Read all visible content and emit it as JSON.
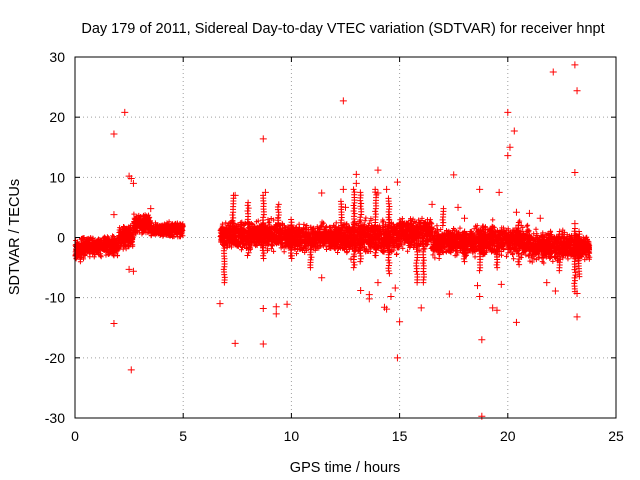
{
  "chart_data": {
    "type": "scatter",
    "title": "Day 179 of 2011, Sidereal Day-to-day VTEC variation (SDTVAR) for receiver hnpt",
    "xlabel": "GPS time / hours",
    "ylabel": "SDTVAR / TECUs",
    "xlim": [
      0,
      25
    ],
    "ylim": [
      -30,
      30
    ],
    "xticks": [
      0,
      5,
      10,
      15,
      20,
      25
    ],
    "yticks": [
      -30,
      -20,
      -10,
      0,
      10,
      20,
      30
    ],
    "grid": true,
    "marker": "+",
    "color": "#ff0000",
    "bands": [
      {
        "x0": 0.0,
        "x1": 0.5,
        "center": -2.0,
        "spread": 1.5
      },
      {
        "x0": 0.5,
        "x1": 2.0,
        "center": -1.5,
        "spread": 1.3
      },
      {
        "x0": 2.0,
        "x1": 2.7,
        "center": 0.0,
        "spread": 1.5
      },
      {
        "x0": 2.7,
        "x1": 3.5,
        "center": 2.3,
        "spread": 1.2
      },
      {
        "x0": 3.5,
        "x1": 5.0,
        "center": 1.3,
        "spread": 0.9
      },
      {
        "x0": 6.7,
        "x1": 9.5,
        "center": 0.5,
        "spread": 1.8
      },
      {
        "x0": 9.5,
        "x1": 12.5,
        "center": 0.0,
        "spread": 1.8
      },
      {
        "x0": 12.5,
        "x1": 15.0,
        "center": 0.0,
        "spread": 2.2
      },
      {
        "x0": 15.0,
        "x1": 16.5,
        "center": 0.8,
        "spread": 2.0
      },
      {
        "x0": 16.5,
        "x1": 18.5,
        "center": -0.8,
        "spread": 1.8
      },
      {
        "x0": 18.5,
        "x1": 21.0,
        "center": -0.5,
        "spread": 2.0
      },
      {
        "x0": 21.0,
        "x1": 23.8,
        "center": -1.5,
        "spread": 1.8
      }
    ],
    "outliers": [
      [
        1.8,
        17.2
      ],
      [
        2.3,
        20.8
      ],
      [
        1.8,
        -14.3
      ],
      [
        2.6,
        -22.0
      ],
      [
        2.5,
        10.2
      ],
      [
        2.6,
        9.8
      ],
      [
        2.7,
        9.0
      ],
      [
        2.5,
        -5.3
      ],
      [
        2.7,
        -5.6
      ],
      [
        1.8,
        3.8
      ],
      [
        3.5,
        4.8
      ],
      [
        6.7,
        -11.0
      ],
      [
        7.4,
        -17.6
      ],
      [
        8.7,
        16.4
      ],
      [
        8.7,
        -11.8
      ],
      [
        8.7,
        -17.7
      ],
      [
        9.3,
        -12.7
      ],
      [
        9.3,
        -11.5
      ],
      [
        9.8,
        -11.1
      ],
      [
        8.8,
        7.5
      ],
      [
        7.4,
        7.0
      ],
      [
        11.4,
        7.4
      ],
      [
        11.4,
        -6.7
      ],
      [
        12.4,
        22.7
      ],
      [
        12.4,
        8.0
      ],
      [
        12.5,
        5.0
      ],
      [
        13.0,
        9.0
      ],
      [
        13.0,
        10.5
      ],
      [
        13.2,
        -8.8
      ],
      [
        13.6,
        -9.5
      ],
      [
        13.6,
        -10.2
      ],
      [
        14.0,
        11.2
      ],
      [
        14.0,
        -7.5
      ],
      [
        14.0,
        7.4
      ],
      [
        14.3,
        -11.6
      ],
      [
        14.4,
        -11.9
      ],
      [
        14.4,
        8.0
      ],
      [
        14.6,
        -9.8
      ],
      [
        14.9,
        9.2
      ],
      [
        14.8,
        -8.4
      ],
      [
        14.9,
        -20.0
      ],
      [
        15.0,
        -14.0
      ],
      [
        16.0,
        -11.7
      ],
      [
        17.3,
        -9.4
      ],
      [
        17.5,
        10.4
      ],
      [
        17.7,
        5.0
      ],
      [
        18.0,
        3.2
      ],
      [
        18.6,
        -8.0
      ],
      [
        18.8,
        -17.0
      ],
      [
        18.8,
        -29.7
      ],
      [
        18.7,
        -9.8
      ],
      [
        18.7,
        8.0
      ],
      [
        19.3,
        -11.7
      ],
      [
        19.5,
        -12.1
      ],
      [
        19.6,
        7.5
      ],
      [
        19.7,
        -7.8
      ],
      [
        20.0,
        20.8
      ],
      [
        20.1,
        15.0
      ],
      [
        20.0,
        13.6
      ],
      [
        20.3,
        17.7
      ],
      [
        20.4,
        -14.1
      ],
      [
        20.4,
        4.2
      ],
      [
        21.5,
        3.2
      ],
      [
        21.8,
        -7.5
      ],
      [
        22.1,
        27.5
      ],
      [
        22.2,
        -8.9
      ],
      [
        23.1,
        28.7
      ],
      [
        23.2,
        24.4
      ],
      [
        23.1,
        10.8
      ],
      [
        23.2,
        -13.2
      ],
      [
        23.2,
        -9.3
      ],
      [
        23.1,
        2.3
      ],
      [
        21.0,
        4.0
      ],
      [
        16.5,
        5.5
      ]
    ],
    "spikes": [
      {
        "x": 6.9,
        "y0": -7.5,
        "y1": 0.0
      },
      {
        "x": 7.3,
        "y0": 0.0,
        "y1": 7.0
      },
      {
        "x": 8.0,
        "y0": -3.0,
        "y1": 5.8
      },
      {
        "x": 8.7,
        "y0": -3.5,
        "y1": 7.0
      },
      {
        "x": 9.4,
        "y0": 2.0,
        "y1": 5.5
      },
      {
        "x": 10.0,
        "y0": -3.5,
        "y1": 3.0
      },
      {
        "x": 10.9,
        "y0": -5.0,
        "y1": -2.0
      },
      {
        "x": 12.3,
        "y0": 2.0,
        "y1": 6.0
      },
      {
        "x": 12.9,
        "y0": -5.0,
        "y1": 8.0
      },
      {
        "x": 13.2,
        "y0": -4.0,
        "y1": 7.5
      },
      {
        "x": 13.9,
        "y0": -3.0,
        "y1": 8.0
      },
      {
        "x": 14.5,
        "y0": -6.0,
        "y1": 6.5
      },
      {
        "x": 15.8,
        "y0": -7.5,
        "y1": -1.0
      },
      {
        "x": 16.1,
        "y0": -7.5,
        "y1": -1.0
      },
      {
        "x": 17.0,
        "y0": 2.0,
        "y1": 4.8
      },
      {
        "x": 18.0,
        "y0": -4.0,
        "y1": 1.0
      },
      {
        "x": 18.7,
        "y0": -5.5,
        "y1": 1.0
      },
      {
        "x": 19.5,
        "y0": -5.0,
        "y1": -1.0
      },
      {
        "x": 20.5,
        "y0": -4.5,
        "y1": 2.5
      },
      {
        "x": 22.4,
        "y0": -5.5,
        "y1": 1.0
      },
      {
        "x": 23.1,
        "y0": -9.0,
        "y1": 1.5
      },
      {
        "x": 23.3,
        "y0": -6.5,
        "y1": 1.0
      }
    ]
  }
}
